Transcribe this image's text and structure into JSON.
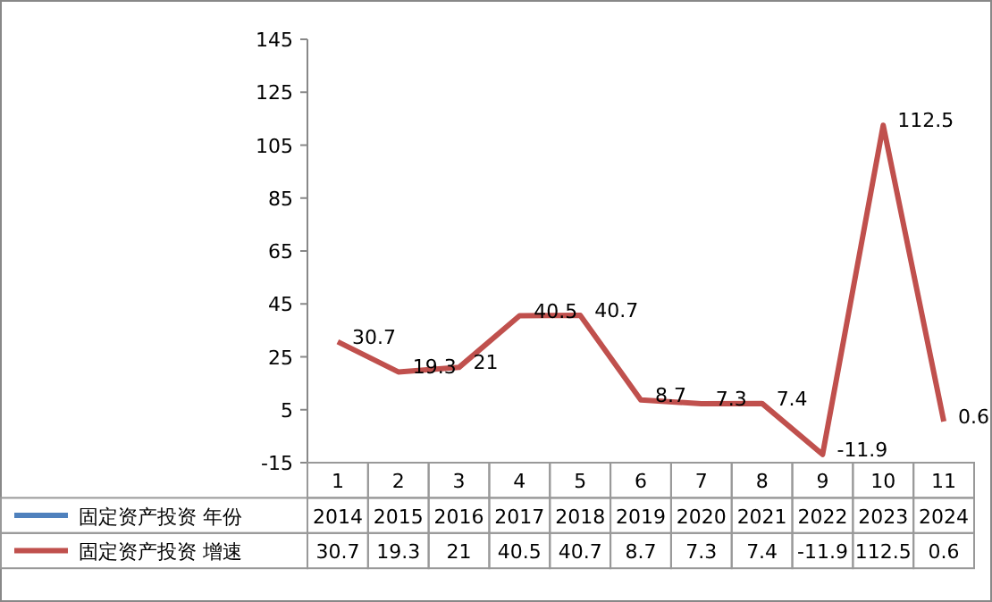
{
  "chart_data": {
    "type": "line",
    "categories": [
      "1",
      "2",
      "3",
      "4",
      "5",
      "6",
      "7",
      "8",
      "9",
      "10",
      "11"
    ],
    "ylim": [
      -15,
      145
    ],
    "yticks": [
      -15,
      5,
      25,
      45,
      65,
      85,
      105,
      125,
      145
    ],
    "data_labels": true,
    "series": [
      {
        "name": "固定资产投资 年份",
        "color": "#4f81bd",
        "values": [
          null,
          null,
          null,
          null,
          null,
          null,
          null,
          null,
          null,
          null,
          null
        ],
        "value_labels": [
          "2014",
          "2015",
          "2016",
          "2017",
          "2018",
          "2019",
          "2020",
          "2021",
          "2022",
          "2023",
          "2024"
        ]
      },
      {
        "name": "固定资产投资 增速",
        "color": "#c0504d",
        "values": [
          30.7,
          19.3,
          21,
          40.5,
          40.7,
          8.7,
          7.3,
          7.4,
          -11.9,
          112.5,
          0.6
        ]
      }
    ],
    "annotations": [
      {
        "text": "30.7",
        "x": "1",
        "y": 30.7
      },
      {
        "text": "19.3",
        "x": "2",
        "y": 19.3
      },
      {
        "text": "21",
        "x": "3",
        "y": 21
      },
      {
        "text": "40.5",
        "x": "4",
        "y": 40.5
      },
      {
        "text": "40.7",
        "x": "5",
        "y": 40.7
      },
      {
        "text": "8.7",
        "x": "6",
        "y": 8.7
      },
      {
        "text": "7.3",
        "x": "7",
        "y": 7.3
      },
      {
        "text": "7.4",
        "x": "8",
        "y": 7.4
      },
      {
        "text": "-11.9",
        "x": "9",
        "y": -11.9
      },
      {
        "text": "112.5",
        "x": "10",
        "y": 112.5
      },
      {
        "text": "0.6",
        "x": "11",
        "y": 0.6
      }
    ]
  }
}
